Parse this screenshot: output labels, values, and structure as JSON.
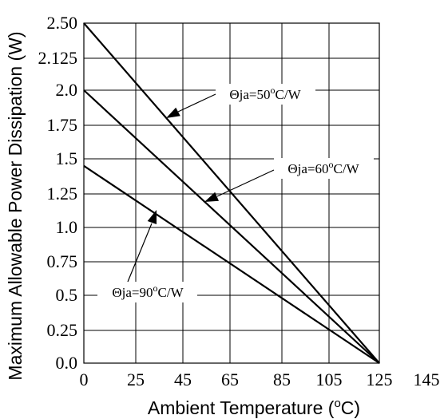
{
  "chart_data": {
    "type": "line",
    "xlabel_main": "Ambient Temperature (",
    "xlabel_sup": "o",
    "xlabel_end": "C)",
    "ylabel": "Maximum Allowable Power Dissipation (W)",
    "xlim": [
      0,
      145
    ],
    "ylim": [
      0,
      2.5
    ],
    "x_ticks": [
      0,
      25,
      45,
      65,
      85,
      105,
      125,
      145
    ],
    "y_ticks": [
      0,
      0.25,
      0.5,
      0.75,
      1.0,
      1.25,
      1.5,
      1.75,
      2.0,
      2.125,
      2.5
    ],
    "x_tick_labels": [
      "0",
      "25",
      "45",
      "65",
      "85",
      "105",
      "125",
      "145"
    ],
    "y_tick_labels": [
      "0.0",
      "0.25",
      "0.5",
      "0.75",
      "1.0",
      "1.25",
      "1.5",
      "1.75",
      "2.0",
      "2.125",
      "2.50"
    ],
    "grid": true,
    "series": [
      {
        "x": [
          0,
          125
        ],
        "y": [
          2.5,
          0
        ]
      },
      {
        "x": [
          0,
          125
        ],
        "y": [
          2.0,
          0
        ]
      },
      {
        "x": [
          0,
          125
        ],
        "y": [
          1.45,
          0
        ]
      }
    ],
    "annotations": [
      {
        "label_main": "Θja=50",
        "label_sup": "o",
        "label_end": "C/W",
        "series_index": 0
      },
      {
        "label_main": "Θja=60",
        "label_sup": "o",
        "label_end": "C/W",
        "series_index": 1
      },
      {
        "label_main": "Θja=90",
        "label_sup": "o",
        "label_end": "C/W",
        "series_index": 2
      }
    ]
  }
}
